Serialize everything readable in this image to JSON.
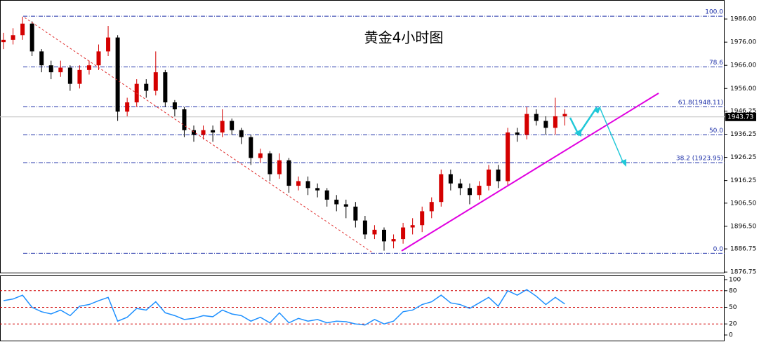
{
  "chart_data": {
    "type": "candlestick",
    "title": "黄金4小时图",
    "up_color": "#d40000",
    "down_color": "#000000",
    "open": [
      1976,
      1977,
      1979,
      1984,
      1972,
      1966,
      1963,
      1965,
      1958,
      1964,
      1966,
      1972,
      1978,
      1946,
      1950,
      1958,
      1955,
      1963,
      1950,
      1947,
      1938,
      1936,
      1938,
      1937,
      1942,
      1938,
      1935,
      1926,
      1928,
      1919,
      1925,
      1914,
      1916,
      1913,
      1912,
      1908,
      1906,
      1905,
      1899,
      1893,
      1895,
      1890,
      1891,
      1896,
      1897,
      1903,
      1907,
      1919,
      1915,
      1913,
      1910,
      1914,
      1921,
      1916,
      1937,
      1936,
      1945,
      1942,
      1939,
      1944
    ],
    "high": [
      1980,
      1982,
      1987,
      1985,
      1973,
      1968,
      1968,
      1966,
      1966,
      1968,
      1975,
      1983,
      1979,
      1952,
      1960,
      1960,
      1972,
      1964,
      1951,
      1948,
      1940,
      1940,
      1940,
      1947,
      1943,
      1939,
      1936,
      1930,
      1929,
      1928,
      1926,
      1918,
      1918,
      1915,
      1913,
      1910,
      1908,
      1907,
      1901,
      1897,
      1896,
      1893,
      1898,
      1900,
      1905,
      1909,
      1921,
      1921,
      1917,
      1915,
      1916,
      1923,
      1923,
      1939,
      1939,
      1948,
      1947,
      1944,
      1952,
      1947
    ],
    "low": [
      1973,
      1975,
      1977,
      1970,
      1963,
      1960,
      1961,
      1955,
      1956,
      1962,
      1964,
      1970,
      1942,
      1944,
      1948,
      1952,
      1953,
      1948,
      1944,
      1935,
      1933,
      1934,
      1933,
      1935,
      1936,
      1932,
      1923,
      1924,
      1916,
      1917,
      1911,
      1912,
      1910,
      1909,
      1905,
      1903,
      1900,
      1896,
      1891,
      1891,
      1886,
      1887,
      1889,
      1893,
      1894,
      1900,
      1905,
      1912,
      1910,
      1906,
      1908,
      1912,
      1913,
      1914,
      1933,
      1934,
      1940,
      1936,
      1936,
      1940
    ],
    "close": [
      1977,
      1979,
      1984,
      1972,
      1966,
      1963,
      1965,
      1958,
      1964,
      1966,
      1972,
      1978,
      1946,
      1950,
      1958,
      1955,
      1963,
      1950,
      1947,
      1938,
      1936,
      1938,
      1937,
      1942,
      1938,
      1935,
      1926,
      1928,
      1919,
      1925,
      1914,
      1916,
      1913,
      1912,
      1908,
      1906,
      1905,
      1899,
      1893,
      1895,
      1890,
      1891,
      1896,
      1897,
      1903,
      1907,
      1919,
      1915,
      1913,
      1910,
      1914,
      1921,
      1916,
      1937,
      1936,
      1945,
      1942,
      1939,
      1944,
      1945
    ],
    "ylim": [
      1876.2,
      1994.2
    ],
    "yticks": [
      {
        "value": 1986,
        "label": "1986.00"
      },
      {
        "value": 1976,
        "label": "1976.00"
      },
      {
        "value": 1966,
        "label": "1966.00"
      },
      {
        "value": 1956,
        "label": "1956.00"
      },
      1946.25,
      1936.25,
      1926.25,
      1916.25,
      {
        "value": 1906.5,
        "label": "1906.50"
      },
      {
        "value": 1896.5,
        "label": "1896.50"
      },
      1886.75,
      1876.75
    ],
    "current_price": 1943.73,
    "fib_levels": [
      {
        "value": 1987.2,
        "label": "100.0"
      },
      {
        "value": 1965.3,
        "label": "78.6"
      },
      {
        "value": 1948.11,
        "label": "61.8(1948.11)"
      },
      {
        "value": 1936.0,
        "label": "50.0"
      },
      {
        "value": 1923.95,
        "label": "38.2 (1923.95)"
      },
      {
        "value": 1884.85,
        "label": "0.0"
      }
    ],
    "rsi": {
      "color": "#1e90ff",
      "ylim": [
        0,
        100
      ],
      "yticks": [
        100,
        80,
        50,
        20,
        0
      ],
      "levels": [
        80,
        50,
        20
      ],
      "values": [
        62,
        65,
        72,
        50,
        42,
        38,
        45,
        35,
        52,
        55,
        62,
        68,
        25,
        32,
        48,
        45,
        60,
        40,
        35,
        28,
        30,
        35,
        33,
        45,
        38,
        35,
        25,
        32,
        22,
        40,
        22,
        30,
        25,
        28,
        22,
        25,
        24,
        20,
        18,
        28,
        20,
        25,
        42,
        45,
        55,
        60,
        72,
        58,
        55,
        48,
        58,
        68,
        52,
        80,
        72,
        82,
        70,
        55,
        68,
        56
      ]
    }
  }
}
